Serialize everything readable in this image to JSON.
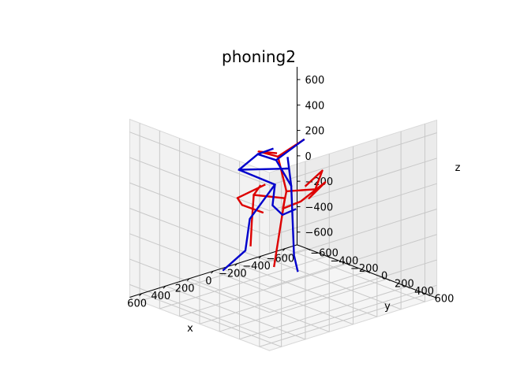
{
  "chart_data": {
    "type": "line3d",
    "title": "phoning2",
    "xlabel": "x",
    "ylabel": "y",
    "zlabel": "z",
    "xlim": [
      -700,
      700
    ],
    "ylim": [
      -700,
      700
    ],
    "zlim": [
      -700,
      700
    ],
    "xticks": [
      -600,
      -400,
      -200,
      0,
      200,
      400,
      600
    ],
    "yticks": [
      -600,
      -400,
      -200,
      0,
      200,
      400,
      600
    ],
    "zticks": [
      -600,
      -400,
      -200,
      0,
      200,
      400,
      600
    ],
    "xtick_labels": [
      "−600",
      "−400",
      "−200",
      "0",
      "200",
      "400",
      "600"
    ],
    "ytick_labels": [
      "−600",
      "−400",
      "−200",
      "0",
      "200",
      "400",
      "600"
    ],
    "ztick_labels": [
      "−600",
      "−400",
      "−200",
      "0",
      "200",
      "400",
      "600"
    ],
    "grid": true,
    "series": [
      {
        "color": "#dd0000",
        "segments": [
          [
            [
              260,
              80,
              280
            ],
            [
              230,
              -20,
              170
            ],
            [
              230,
              -40,
              -50
            ],
            [
              240,
              -40,
              -230
            ]
          ],
          [
            [
              230,
              -20,
              170
            ],
            [
              20,
              40,
              100
            ],
            [
              60,
              -20,
              -440
            ]
          ],
          [
            [
              -10,
              20,
              140
            ],
            [
              -60,
              250,
              210
            ],
            [
              -210,
              140,
              280
            ],
            [
              -180,
              10,
              130
            ]
          ],
          [
            [
              -20,
              180,
              590
            ],
            [
              70,
              30,
              440
            ],
            [
              -10,
              20,
              140
            ]
          ],
          [
            [
              70,
              30,
              440
            ],
            [
              190,
              -20,
              500
            ],
            [
              160,
              120,
              520
            ]
          ],
          [
            [
              -10,
              20,
              140
            ],
            [
              -30,
              -40,
              -20
            ],
            [
              -120,
              30,
              30
            ],
            [
              -250,
              120,
              170
            ],
            [
              -200,
              20,
              30
            ]
          ],
          [
            [
              90,
              -80,
              190
            ],
            [
              250,
              -160,
              110
            ],
            [
              220,
              -150,
              50
            ],
            [
              140,
              -40,
              0
            ]
          ]
        ]
      },
      {
        "color": "#0000cc",
        "segments": [
          [
            [
              -20,
              180,
              590
            ],
            [
              60,
              0,
              400
            ],
            [
              -50,
              20,
              170
            ],
            [
              -40,
              60,
              -360
            ],
            [
              -20,
              120,
              -460
            ]
          ],
          [
            [
              -50,
              20,
              170
            ],
            [
              -20,
              20,
              400
            ]
          ],
          [
            [
              60,
              0,
              400
            ],
            [
              180,
              -40,
              470
            ],
            [
              140,
              60,
              530
            ]
          ],
          [
            [
              180,
              -40,
              470
            ],
            [
              270,
              -120,
              350
            ],
            [
              50,
              100,
              360
            ]
          ],
          [
            [
              270,
              -120,
              350
            ],
            [
              70,
              0,
              210
            ],
            [
              40,
              -60,
              20
            ],
            [
              -60,
              -80,
              -90
            ],
            [
              -200,
              -120,
              -100
            ]
          ],
          [
            [
              70,
              0,
              210
            ],
            [
              230,
              -60,
              -30
            ],
            [
              250,
              -80,
              -280
            ],
            [
              400,
              -120,
              -400
            ]
          ]
        ]
      }
    ]
  }
}
